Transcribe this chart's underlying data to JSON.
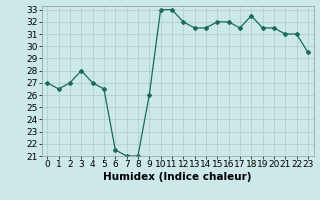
{
  "x": [
    0,
    1,
    2,
    3,
    4,
    5,
    6,
    7,
    8,
    9,
    10,
    11,
    12,
    13,
    14,
    15,
    16,
    17,
    18,
    19,
    20,
    21,
    22,
    23
  ],
  "y": [
    27.0,
    26.5,
    27.0,
    28.0,
    27.0,
    26.5,
    21.5,
    21.0,
    21.0,
    26.0,
    33.0,
    33.0,
    32.0,
    31.5,
    31.5,
    32.0,
    32.0,
    31.5,
    32.5,
    31.5,
    31.5,
    31.0,
    31.0,
    29.5
  ],
  "title": "",
  "xlabel": "Humidex (Indice chaleur)",
  "ylabel": "",
  "ylim": [
    21,
    33
  ],
  "xlim": [
    -0.5,
    23.5
  ],
  "yticks": [
    21,
    22,
    23,
    24,
    25,
    26,
    27,
    28,
    29,
    30,
    31,
    32,
    33
  ],
  "xticks": [
    0,
    1,
    2,
    3,
    4,
    5,
    6,
    7,
    8,
    9,
    10,
    11,
    12,
    13,
    14,
    15,
    16,
    17,
    18,
    19,
    20,
    21,
    22,
    23
  ],
  "line_color": "#1a6b5a",
  "marker": "D",
  "marker_size": 2,
  "bg_color": "#cce8e8",
  "grid_color": "#aacccc",
  "font_size": 6.5
}
